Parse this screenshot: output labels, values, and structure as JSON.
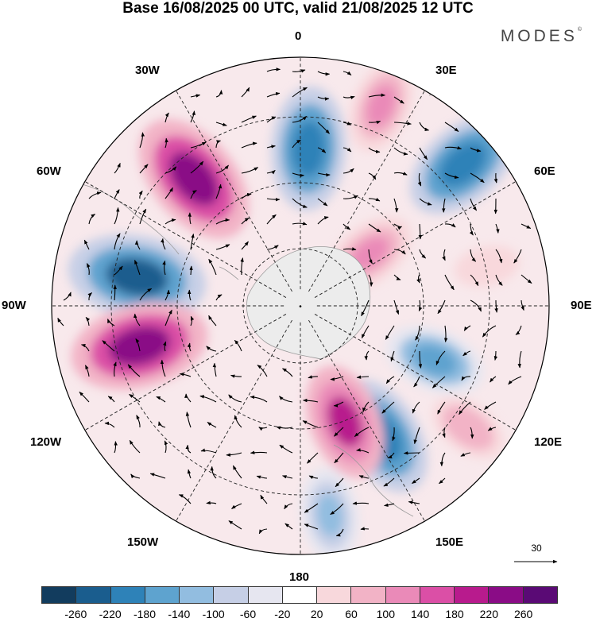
{
  "title": "Base 16/08/2025 00 UTC, valid 21/08/2025 12 UTC",
  "brand": "MODES",
  "brand_mark": "©",
  "longitude_labels": {
    "top": "0",
    "top_left": "30W",
    "top_right": "30E",
    "left_upper": "60W",
    "right_upper": "60E",
    "left": "90W",
    "right": "90E",
    "left_lower": "120W",
    "right_lower": "120E",
    "bottom_left": "150W",
    "bottom_right": "150E",
    "bottom": "180"
  },
  "reference_vector": "30",
  "colorbar": {
    "colors": [
      "#123c5e",
      "#1a5d8e",
      "#2e82b8",
      "#5ea3cf",
      "#92bde0",
      "#c6cfe6",
      "#e6e6f0",
      "#ffffff",
      "#f8d8dc",
      "#f2b3c6",
      "#ea8ab8",
      "#db4fa6",
      "#b81b8d",
      "#8a0c86",
      "#5a0a75"
    ],
    "tick_labels": [
      "-260",
      "-220",
      "-180",
      "-140",
      "-100",
      "-60",
      "-20",
      "20",
      "60",
      "100",
      "140",
      "180",
      "220",
      "260"
    ]
  },
  "anomalies": [
    {
      "value": -260,
      "lon": -80,
      "colat": 40
    },
    {
      "value": -220,
      "lon": 3,
      "colat": 38
    },
    {
      "value": 260,
      "lon": -40,
      "colat": 40
    },
    {
      "value": 260,
      "lon": -104,
      "colat": 40
    },
    {
      "value": -220,
      "lon": 148,
      "colat": 37
    },
    {
      "value": 200,
      "lon": 159,
      "colat": 30
    },
    {
      "value": 140,
      "lon": 22,
      "colat": 52
    },
    {
      "value": 140,
      "lon": 53,
      "colat": 21
    },
    {
      "value": -220,
      "lon": 49,
      "colat": 52
    },
    {
      "value": -160,
      "lon": 112,
      "colat": 35
    },
    {
      "value": 100,
      "lon": 126,
      "colat": 50
    },
    {
      "value": -140,
      "lon": 172,
      "colat": 51
    },
    {
      "value": 60,
      "lon": 78,
      "colat": 46
    }
  ]
}
